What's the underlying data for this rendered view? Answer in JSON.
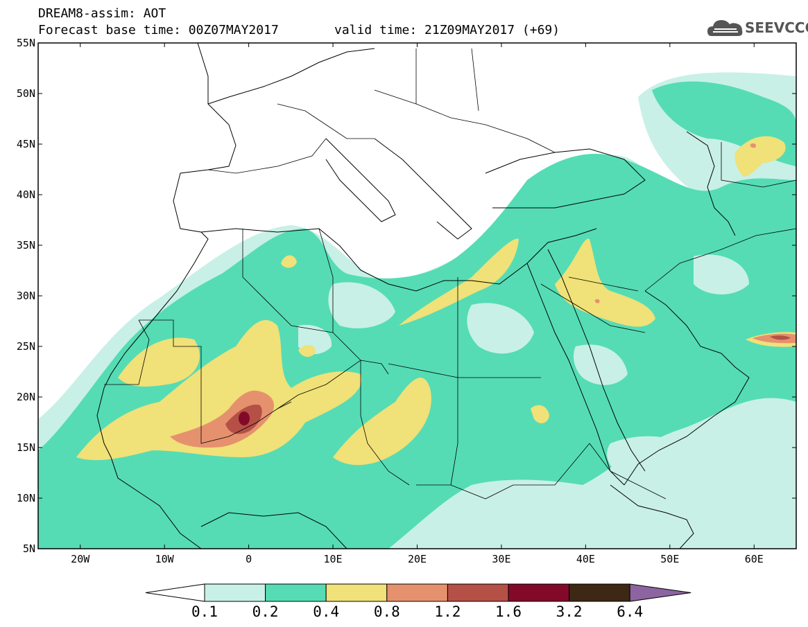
{
  "title": {
    "line1": "DREAM8-assim: AOT",
    "line2": "Forecast base time: 00Z07MAY2017",
    "valid": "valid time: 21Z09MAY2017 (+69)"
  },
  "logo": {
    "text": "SEEVCCC",
    "icon": "cloud-icon"
  },
  "axes": {
    "lat_labels": [
      "55N",
      "50N",
      "45N",
      "40N",
      "35N",
      "30N",
      "25N",
      "20N",
      "15N",
      "10N",
      "5N"
    ],
    "lon_labels": [
      "20W",
      "10W",
      "0",
      "10E",
      "20E",
      "30E",
      "40E",
      "50E",
      "60E"
    ],
    "lat_range": [
      5,
      55
    ],
    "lon_range": [
      -25,
      65
    ]
  },
  "colorbar": {
    "levels": [
      "0.1",
      "0.2",
      "0.4",
      "0.8",
      "1.2",
      "1.6",
      "3.2",
      "6.4"
    ],
    "colors": [
      "#c8f0e6",
      "#55dcb4",
      "#f0e178",
      "#e6916e",
      "#b45046",
      "#820a28",
      "#3c2814",
      "#8c64a0"
    ]
  }
}
